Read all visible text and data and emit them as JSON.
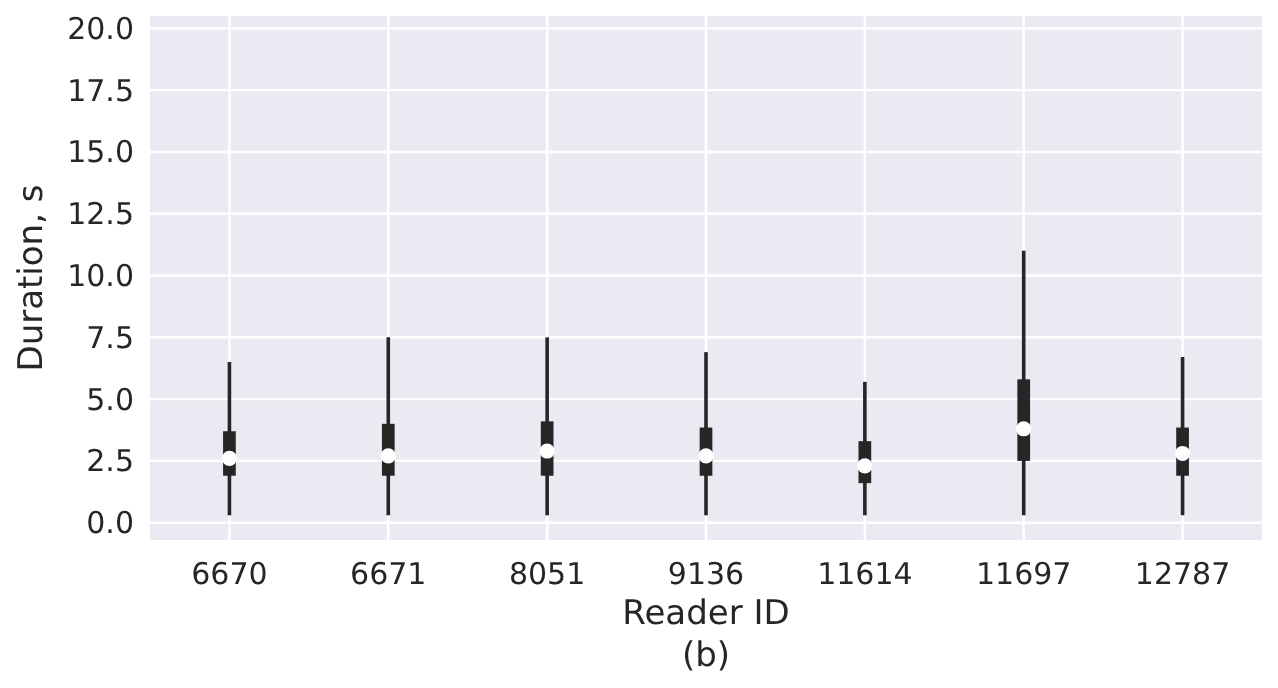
{
  "chart_data": {
    "type": "box",
    "xlabel": "Reader ID",
    "ylabel": "Duration, s",
    "annotations": [
      "(b)"
    ],
    "categories": [
      "6670",
      "6671",
      "8051",
      "9136",
      "11614",
      "11697",
      "12787"
    ],
    "boxes": [
      {
        "low": 0.3,
        "q1": 1.9,
        "median": 2.6,
        "q3": 3.7,
        "high": 6.5
      },
      {
        "low": 0.3,
        "q1": 1.9,
        "median": 2.7,
        "q3": 4.0,
        "high": 7.5
      },
      {
        "low": 0.3,
        "q1": 1.9,
        "median": 2.9,
        "q3": 4.1,
        "high": 7.5
      },
      {
        "low": 0.3,
        "q1": 1.9,
        "median": 2.7,
        "q3": 3.85,
        "high": 6.9
      },
      {
        "low": 0.3,
        "q1": 1.6,
        "median": 2.3,
        "q3": 3.3,
        "high": 5.7
      },
      {
        "low": 0.3,
        "q1": 2.5,
        "median": 3.8,
        "q3": 5.8,
        "high": 11.0
      },
      {
        "low": 0.3,
        "q1": 1.9,
        "median": 2.8,
        "q3": 3.85,
        "high": 6.7
      }
    ],
    "color": "#262626",
    "ylim": [
      -0.7,
      20.5
    ],
    "yticks": [
      {
        "value": 0,
        "label": "0.0"
      },
      {
        "value": 2.5,
        "label": "2.5"
      },
      {
        "value": 5,
        "label": "5.0"
      },
      {
        "value": 7.5,
        "label": "7.5"
      },
      {
        "value": 10,
        "label": "10.0"
      },
      {
        "value": 12.5,
        "label": "12.5"
      },
      {
        "value": 15,
        "label": "15.0"
      },
      {
        "value": 17.5,
        "label": "17.5"
      },
      {
        "value": 20,
        "label": "20.0"
      }
    ],
    "grid": true
  }
}
